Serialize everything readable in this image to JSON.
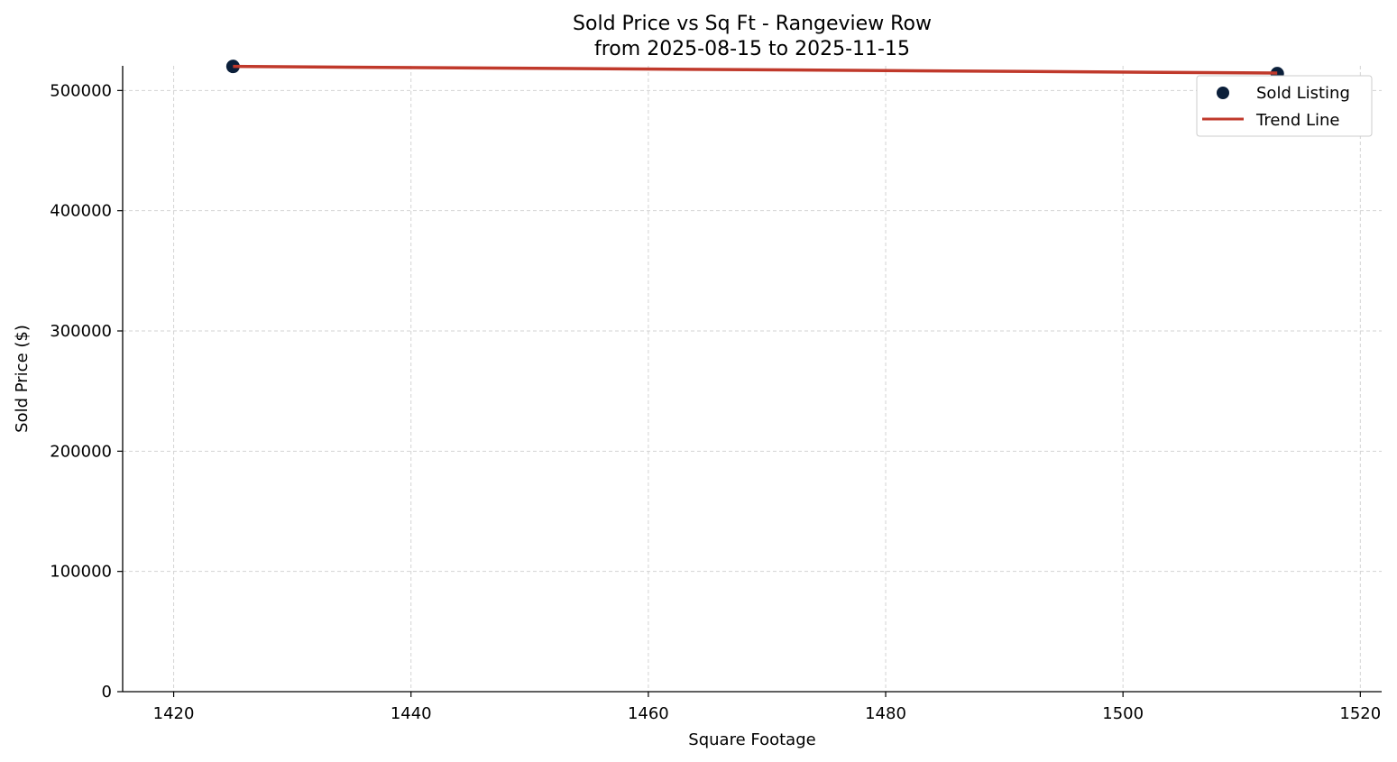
{
  "chart_data": {
    "type": "scatter",
    "title": "Sold Price vs Sq Ft - Rangeview Row",
    "subtitle": "from 2025-08-15 to 2025-11-15",
    "xlabel": "Square Footage",
    "ylabel": "Sold Price ($)",
    "xlim": [
      1415.7,
      1521.8
    ],
    "ylim": [
      0,
      520500
    ],
    "x_ticks": [
      1420,
      1440,
      1460,
      1480,
      1500,
      1520
    ],
    "y_ticks": [
      0,
      100000,
      200000,
      300000,
      400000,
      500000
    ],
    "grid": true,
    "legend_position": "top-right",
    "series": [
      {
        "name": "Sold Listing",
        "kind": "scatter",
        "color": "#0b1f3a",
        "points": [
          {
            "x": 1425,
            "y": 520000
          },
          {
            "x": 1513,
            "y": 514000
          }
        ]
      },
      {
        "name": "Trend Line",
        "kind": "line",
        "color": "#c0392b",
        "points": [
          {
            "x": 1425,
            "y": 520000
          },
          {
            "x": 1513,
            "y": 514500
          }
        ]
      }
    ]
  }
}
